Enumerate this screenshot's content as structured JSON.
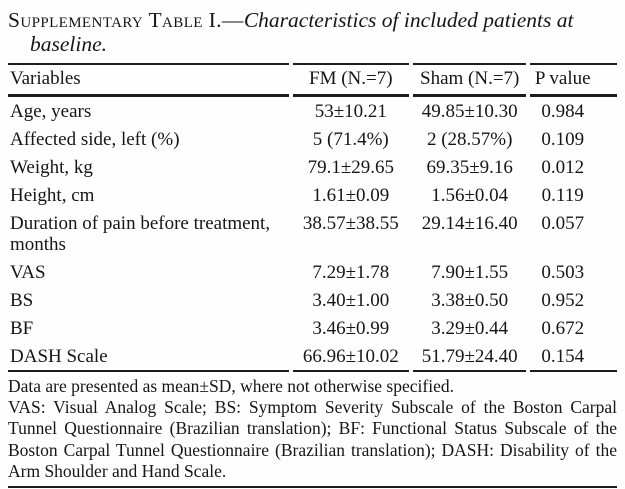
{
  "colors": {
    "background": "#fefefe",
    "text": "#161616",
    "rule": "#1c1c1c"
  },
  "title": {
    "label": "Supplementary Table I.—",
    "text": "Characteristics of included patients at baseline."
  },
  "table": {
    "headers": {
      "variable": "Variables",
      "fm": "FM (N.=7)",
      "sham": "Sham (N.=7)",
      "p": "P value"
    },
    "rows": [
      {
        "variable": "Age, years",
        "fm": "53±10.21",
        "sham": "49.85±10.30",
        "p": "0.984"
      },
      {
        "variable": "Affected side, left (%)",
        "fm": "5 (71.4%)",
        "sham": "2 (28.57%)",
        "p": "0.109"
      },
      {
        "variable": "Weight, kg",
        "fm": "79.1±29.65",
        "sham": "69.35±9.16",
        "p": "0.012"
      },
      {
        "variable": "Height, cm",
        "fm": "1.61±0.09",
        "sham": "1.56±0.04",
        "p": "0.119"
      },
      {
        "variable": "Duration of pain before treatment, months",
        "fm": "38.57±38.55",
        "sham": "29.14±16.40",
        "p": "0.057"
      },
      {
        "variable": "VAS",
        "fm": "7.29±1.78",
        "sham": "7.90±1.55",
        "p": "0.503"
      },
      {
        "variable": "BS",
        "fm": "3.40±1.00",
        "sham": "3.38±0.50",
        "p": "0.952"
      },
      {
        "variable": "BF",
        "fm": "3.46±0.99",
        "sham": "3.29±0.44",
        "p": "0.672"
      },
      {
        "variable": "DASH Scale",
        "fm": "66.96±10.02",
        "sham": "51.79±24.40",
        "p": "0.154"
      }
    ]
  },
  "footnotes": {
    "presentation": "Data are presented as mean±SD, where not otherwise specified.",
    "abbreviations": "VAS: Visual Analog Scale; BS: Symptom Severity Subscale of the Boston Carpal Tunnel Questionnaire (Brazilian translation); BF: Functional Status Subscale of the Boston Carpal Tunnel Questionnaire (Brazilian translation); DASH: Disability of the Arm Shoulder and Hand Scale."
  }
}
